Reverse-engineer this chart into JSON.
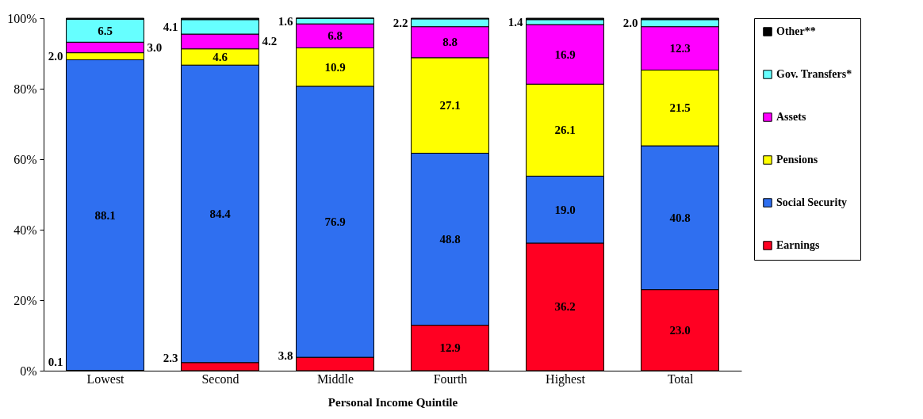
{
  "chart_data": {
    "type": "bar",
    "stacked": true,
    "xlabel": "Personal Income Quintile",
    "categories": [
      "Lowest",
      "Second",
      "Middle",
      "Fourth",
      "Highest",
      "Total"
    ],
    "series": [
      {
        "name": "Earnings",
        "color": "#ff0022",
        "values": [
          0.1,
          2.3,
          3.8,
          12.9,
          36.2,
          23.0
        ],
        "value_labels": [
          "0.1",
          "2.3",
          "3.8",
          "12.9",
          "36.2",
          "23.0"
        ]
      },
      {
        "name": "Social Security",
        "color": "#2f6ff0",
        "values": [
          88.1,
          84.4,
          76.9,
          48.8,
          19.0,
          40.8
        ],
        "value_labels": [
          "88.1",
          "84.4",
          "76.9",
          "48.8",
          "19.0",
          "40.8"
        ]
      },
      {
        "name": "Pensions",
        "color": "#ffff00",
        "values": [
          2.0,
          4.6,
          10.9,
          27.1,
          26.1,
          21.5
        ],
        "value_labels": [
          "2.0",
          "4.6",
          "10.9",
          "27.1",
          "26.1",
          "21.5"
        ]
      },
      {
        "name": "Assets",
        "color": "#ff00ff",
        "values": [
          3.0,
          4.2,
          6.8,
          8.8,
          16.9,
          12.3
        ],
        "value_labels": [
          "3.0",
          "4.2",
          "6.8",
          "8.8",
          "16.9",
          "12.3"
        ]
      },
      {
        "name": "Gov. Transfers*",
        "color": "#66ffff",
        "values": [
          6.5,
          4.1,
          1.6,
          2.2,
          1.4,
          2.0
        ],
        "value_labels": [
          "6.5",
          "4.1",
          "1.6",
          "2.2",
          "1.4",
          "2.0"
        ]
      },
      {
        "name": "Other**",
        "color": "#000000",
        "values": [
          0.3,
          0.4,
          0.0,
          0.2,
          0.4,
          0.4
        ],
        "value_labels": [
          null,
          null,
          null,
          null,
          null,
          null
        ]
      }
    ],
    "ylim": [
      0,
      100
    ],
    "yticks": [
      {
        "value": 0,
        "label": "0%"
      },
      {
        "value": 20,
        "label": "20%"
      },
      {
        "value": 40,
        "label": "40%"
      },
      {
        "value": 60,
        "label": "60%"
      },
      {
        "value": 80,
        "label": "80%"
      },
      {
        "value": 100,
        "label": "100%"
      }
    ],
    "grid": false,
    "legend": "right"
  }
}
